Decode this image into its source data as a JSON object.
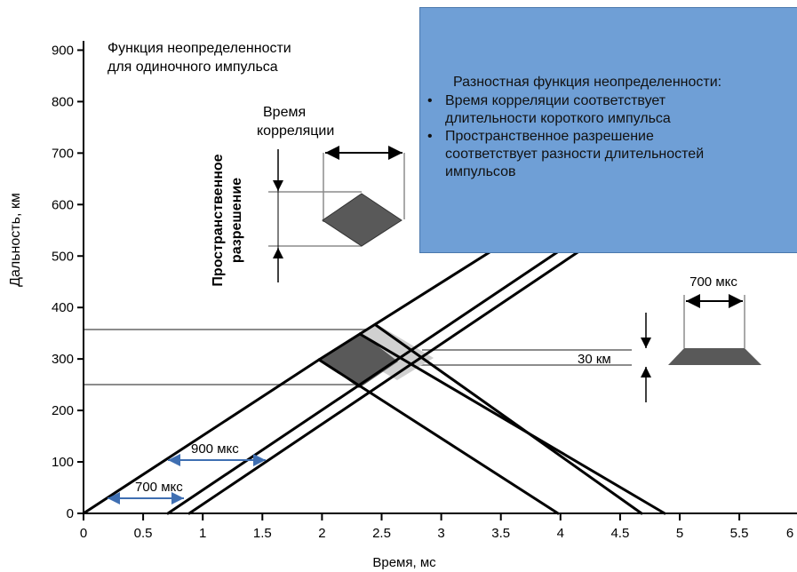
{
  "axes": {
    "x_label": "Время, мс",
    "y_label": "Дальность, км",
    "x_ticks": [
      "0",
      "0.5",
      "1",
      "1.5",
      "2",
      "2.5",
      "3",
      "3.5",
      "4",
      "4.5",
      "5",
      "5.5",
      "6"
    ],
    "y_ticks": [
      "0",
      "100",
      "200",
      "300",
      "400",
      "500",
      "600",
      "700",
      "800",
      "900"
    ],
    "x_range_ms": [
      0,
      6
    ],
    "y_range_km": [
      0,
      900
    ]
  },
  "single_pulse": {
    "title_line1": "Функция неопределенности",
    "title_line2": "для одиночного импульса",
    "correlation_label_line1": "Время",
    "correlation_label_line2": "корреляции",
    "spatial_label_line1": "Пространственное",
    "spatial_label_line2": "разрешение"
  },
  "info_box": {
    "title": "Разностная функция неопределенности:",
    "bullets": [
      "Время корреляции соответствует длительности короткого импульса",
      "Пространственное разрешение соответствует разности длительностей импульсов"
    ],
    "color": "#6f9fd6"
  },
  "annotations": {
    "pulse_700_top": "700 мкс",
    "range_30": "30 км",
    "pulse_900": "900 мкс",
    "pulse_700_bottom": "700 мкс"
  },
  "colors": {
    "dark_region": "#595959",
    "light_region": "#d0d0d0",
    "arrow_blue": "#3f6fb2",
    "lines": "#000000",
    "guides": "#8c8c8c"
  }
}
